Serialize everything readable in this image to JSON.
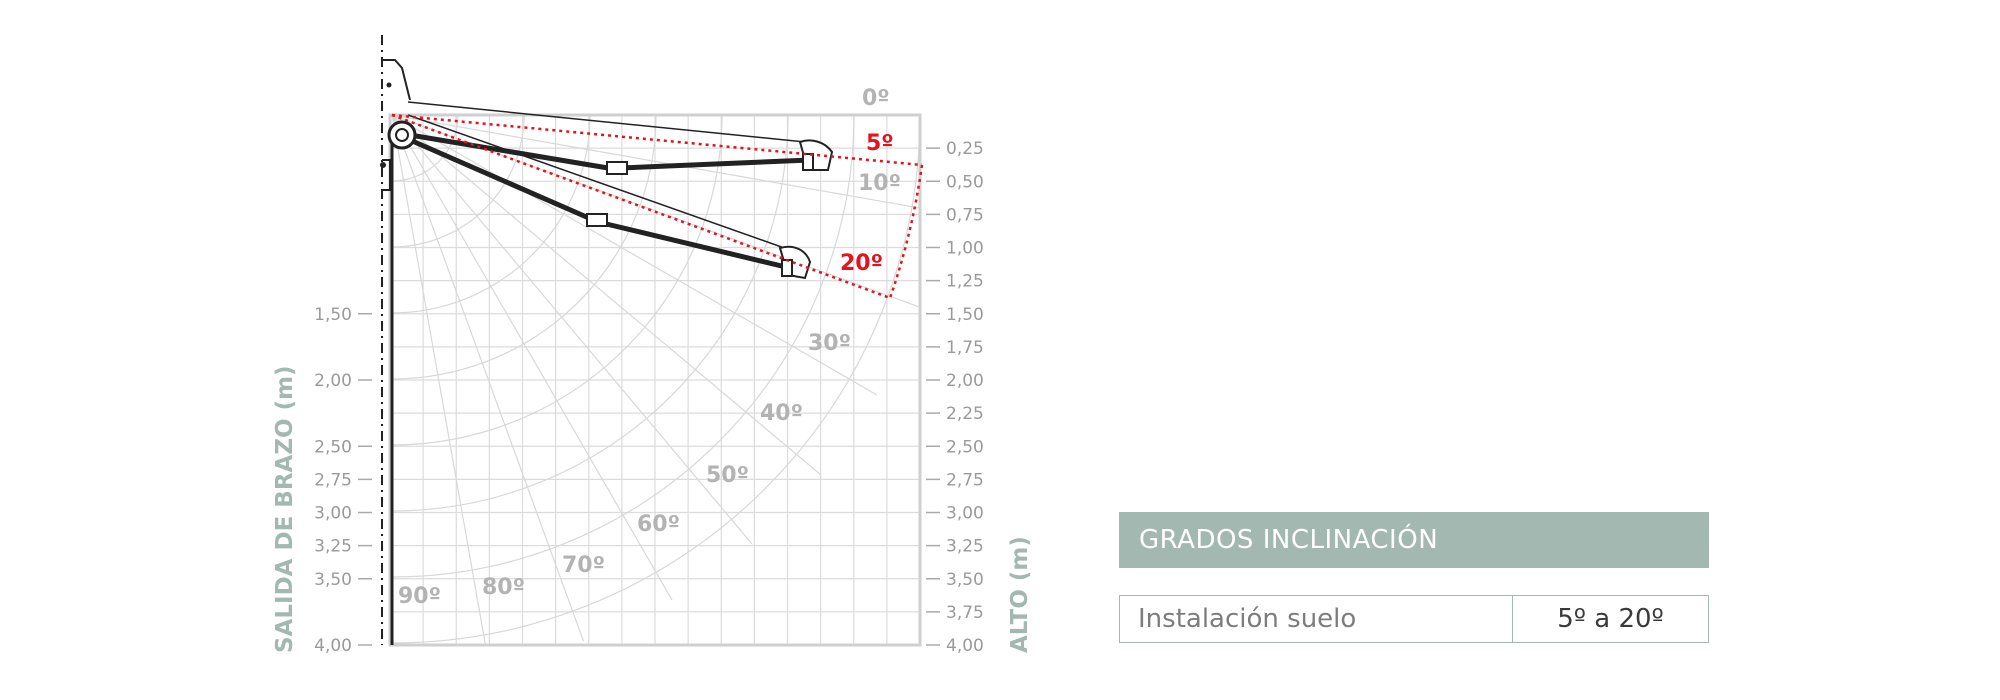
{
  "diagram": {
    "axes": {
      "left_title": "SALIDA DE BRAZO (m)",
      "right_title": "ALTO (m)",
      "left_ticks": [
        "1,50",
        "2,00",
        "2,50",
        "2,75",
        "3,00",
        "3,25",
        "3,50",
        "4,00"
      ],
      "right_ticks": [
        "0,25",
        "0,50",
        "0,75",
        "1,00",
        "1,25",
        "1,50",
        "1,75",
        "2,00",
        "2,25",
        "2,50",
        "2,75",
        "3,00",
        "3,25",
        "3,50",
        "3,75",
        "4,00"
      ]
    },
    "angle_labels": {
      "a0": "0º",
      "a5": "5º",
      "a10": "10º",
      "a20": "20º",
      "a30": "30º",
      "a40": "40º",
      "a50": "50º",
      "a60": "60º",
      "a70": "70º",
      "a80": "80º",
      "a90": "90º"
    },
    "inclination_range_deg": [
      5,
      20
    ],
    "colors": {
      "grid": "#d8d8d8",
      "axis": "#cfcfcf",
      "awning": "#2a2a2a",
      "range": "#e3141b",
      "accent": "#a4b8b2"
    }
  },
  "spec_table": {
    "header": "GRADOS INCLINACIÓN",
    "rows": [
      {
        "label": "Instalación suelo",
        "value": "5º a 20º"
      }
    ]
  }
}
